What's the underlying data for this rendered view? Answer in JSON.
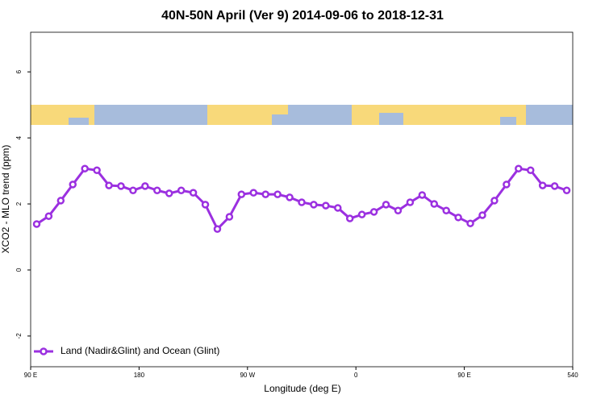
{
  "chart_data": {
    "type": "line",
    "title": "40N-50N April (Ver 9)   2014-09-06 to 2018-12-31",
    "xlabel": "Longitude (deg E)",
    "ylabel": "XCO2 - MLO trend (ppm)",
    "xlim": [
      90,
      540
    ],
    "ylim": [
      -2.93,
      7.2
    ],
    "xticks": [
      {
        "value": 90,
        "label": "90 E"
      },
      180,
      {
        "value": 270,
        "label": "90 W"
      },
      {
        "value": 360,
        "label": "0"
      },
      {
        "value": 450,
        "label": "90 E"
      },
      540
    ],
    "yticks": [
      -2,
      0,
      2,
      4,
      6
    ],
    "legend": "bottom-left",
    "x": [
      95,
      105,
      115,
      125,
      135,
      145,
      155,
      165,
      175,
      185,
      195,
      205,
      215,
      225,
      235,
      245,
      255,
      265,
      275,
      285,
      295,
      305,
      315,
      325,
      335,
      345,
      355,
      365,
      375,
      385,
      395,
      405,
      415,
      425,
      435,
      445,
      455,
      465,
      475,
      485,
      495,
      505,
      515,
      525,
      535
    ],
    "series": [
      {
        "name": "Land (Nadir&Glint) and Ocean (Glint)",
        "color": "#9b30e0",
        "values": [
          1.39,
          1.63,
          2.1,
          2.59,
          3.07,
          3.02,
          2.56,
          2.54,
          2.41,
          2.54,
          2.41,
          2.32,
          2.41,
          2.34,
          1.98,
          1.24,
          1.61,
          2.29,
          2.34,
          2.29,
          2.29,
          2.2,
          2.05,
          1.98,
          1.95,
          1.88,
          1.56,
          1.68,
          1.76,
          1.98,
          1.8,
          2.05,
          2.27,
          2.0,
          1.8,
          1.59,
          1.41,
          1.66,
          2.1,
          2.59,
          3.07,
          3.02,
          2.56,
          2.54,
          2.41
        ]
      }
    ]
  }
}
